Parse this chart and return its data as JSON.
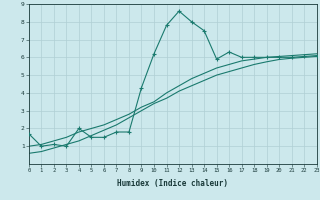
{
  "title": "",
  "xlabel": "Humidex (Indice chaleur)",
  "ylabel": "",
  "bg_color": "#cce8ec",
  "line_color": "#1a7a6e",
  "grid_color": "#b0cfd4",
  "xmin": 0,
  "xmax": 23,
  "ymin": 0,
  "ymax": 9,
  "xticks": [
    0,
    1,
    2,
    3,
    4,
    5,
    6,
    7,
    8,
    9,
    10,
    11,
    12,
    13,
    14,
    15,
    16,
    17,
    18,
    19,
    20,
    21,
    22,
    23
  ],
  "yticks": [
    1,
    2,
    3,
    4,
    5,
    6,
    7,
    8,
    9
  ],
  "jagged_x": [
    0,
    1,
    2,
    3,
    4,
    5,
    6,
    7,
    8,
    9,
    10,
    11,
    12,
    13,
    14,
    15,
    16,
    17,
    18,
    19,
    20,
    21,
    22,
    23
  ],
  "jagged_y": [
    1.7,
    1.0,
    1.1,
    1.0,
    2.0,
    1.5,
    1.5,
    1.8,
    1.8,
    4.3,
    6.2,
    7.8,
    8.6,
    8.0,
    7.5,
    5.9,
    6.3,
    6.0,
    6.0,
    6.0,
    6.0,
    6.0,
    6.05,
    6.1
  ],
  "line2_x": [
    0,
    1,
    2,
    3,
    4,
    5,
    6,
    7,
    8,
    9,
    10,
    11,
    12,
    13,
    14,
    15,
    16,
    17,
    18,
    19,
    20,
    21,
    22,
    23
  ],
  "line2_y": [
    1.0,
    1.1,
    1.3,
    1.5,
    1.8,
    2.0,
    2.2,
    2.5,
    2.8,
    3.2,
    3.5,
    4.0,
    4.4,
    4.8,
    5.1,
    5.4,
    5.6,
    5.8,
    5.9,
    6.0,
    6.05,
    6.1,
    6.15,
    6.2
  ],
  "line3_x": [
    0,
    1,
    2,
    3,
    4,
    5,
    6,
    7,
    8,
    9,
    10,
    11,
    12,
    13,
    14,
    15,
    16,
    17,
    18,
    19,
    20,
    21,
    22,
    23
  ],
  "line3_y": [
    0.6,
    0.7,
    0.9,
    1.1,
    1.3,
    1.6,
    1.9,
    2.2,
    2.6,
    3.0,
    3.4,
    3.7,
    4.1,
    4.4,
    4.7,
    5.0,
    5.2,
    5.4,
    5.6,
    5.75,
    5.88,
    5.95,
    6.0,
    6.05
  ]
}
